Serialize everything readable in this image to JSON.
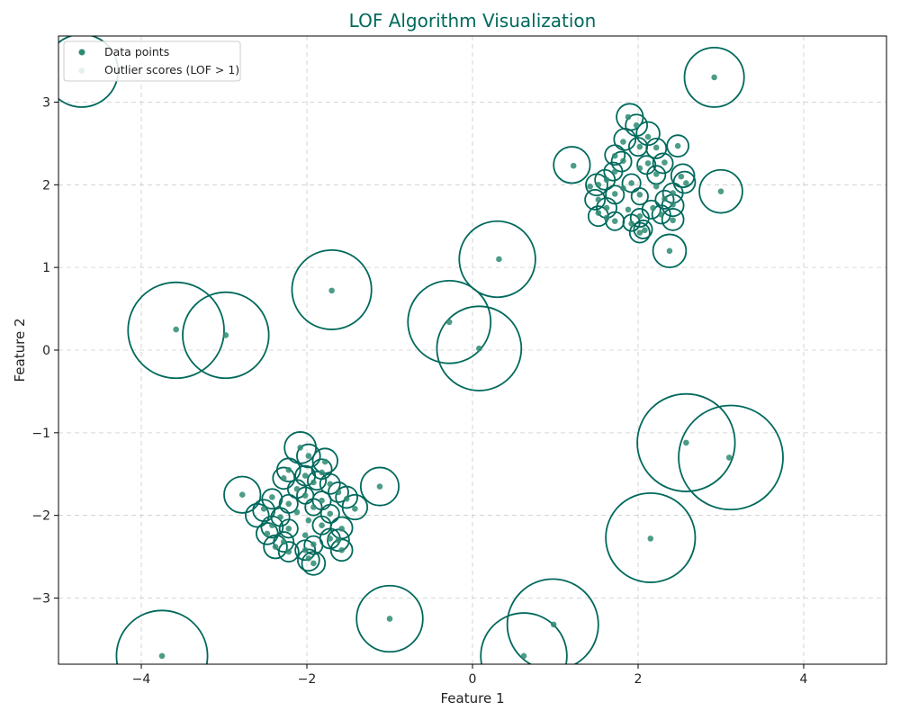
{
  "chart_data": {
    "type": "scatter",
    "title": "LOF Algorithm Visualization",
    "xlabel": "Feature 1",
    "ylabel": "Feature 2",
    "xlim": [
      -5,
      5
    ],
    "ylim": [
      -3.8,
      3.8
    ],
    "xticks": [
      -4,
      -2,
      0,
      2,
      4
    ],
    "xtick_labels": [
      "−4",
      "−2",
      "0",
      "2",
      "4"
    ],
    "yticks": [
      -3,
      -2,
      -1,
      0,
      1,
      2,
      3
    ],
    "ytick_labels": [
      "−3",
      "−2",
      "−1",
      "0",
      "1",
      "2",
      "3"
    ],
    "grid": true,
    "legend_location": "upper-left",
    "legend": [
      "Data points",
      "Outlier scores (LOF > 1)"
    ],
    "colors": {
      "accent": "#00695c",
      "point": "#2e8b73",
      "grid": "#cccccc"
    },
    "series": [
      {
        "name": "Data points",
        "points": [
          [
            1.88,
            2.82
          ],
          [
            1.98,
            2.72
          ],
          [
            2.12,
            2.58
          ],
          [
            1.82,
            2.52
          ],
          [
            2.22,
            2.45
          ],
          [
            2.02,
            2.46
          ],
          [
            2.48,
            2.47
          ],
          [
            1.72,
            2.35
          ],
          [
            2.32,
            2.27
          ],
          [
            1.22,
            2.23
          ],
          [
            1.82,
            2.29
          ],
          [
            2.12,
            2.26
          ],
          [
            1.72,
            2.16
          ],
          [
            2.02,
            2.2
          ],
          [
            2.22,
            2.13
          ],
          [
            2.52,
            2.1
          ],
          [
            1.62,
            2.06
          ],
          [
            1.92,
            2.02
          ],
          [
            2.22,
            1.98
          ],
          [
            2.42,
            1.9
          ],
          [
            1.52,
            2.0
          ],
          [
            1.82,
            1.96
          ],
          [
            2.58,
            2.02
          ],
          [
            1.42,
            1.98
          ],
          [
            1.72,
            1.89
          ],
          [
            2.02,
            1.88
          ],
          [
            2.32,
            1.83
          ],
          [
            1.52,
            1.82
          ],
          [
            2.42,
            1.76
          ],
          [
            1.62,
            1.72
          ],
          [
            1.88,
            1.7
          ],
          [
            2.18,
            1.72
          ],
          [
            1.52,
            1.66
          ],
          [
            1.72,
            1.56
          ],
          [
            2.02,
            1.62
          ],
          [
            2.28,
            1.64
          ],
          [
            1.62,
            1.6
          ],
          [
            1.92,
            1.53
          ],
          [
            2.42,
            1.57
          ],
          [
            2.02,
            1.42
          ],
          [
            2.08,
            1.45
          ],
          [
            2.38,
            1.2
          ],
          [
            3.0,
            1.92
          ],
          [
            2.92,
            3.3
          ],
          [
            -2.08,
            -1.18
          ],
          [
            -1.98,
            -1.28
          ],
          [
            -1.78,
            -1.35
          ],
          [
            -2.22,
            -1.45
          ],
          [
            -1.82,
            -1.48
          ],
          [
            -2.02,
            -1.52
          ],
          [
            -1.92,
            -1.6
          ],
          [
            -2.28,
            -1.55
          ],
          [
            -1.72,
            -1.62
          ],
          [
            -2.12,
            -1.68
          ],
          [
            -1.62,
            -1.72
          ],
          [
            -2.42,
            -1.78
          ],
          [
            -2.02,
            -1.76
          ],
          [
            -1.82,
            -1.82
          ],
          [
            -2.22,
            -1.86
          ],
          [
            -1.52,
            -1.8
          ],
          [
            -1.92,
            -1.9
          ],
          [
            -2.52,
            -1.92
          ],
          [
            -1.42,
            -1.92
          ],
          [
            -2.12,
            -1.96
          ],
          [
            -1.72,
            -1.98
          ],
          [
            -2.32,
            -2.02
          ],
          [
            -1.98,
            -2.06
          ],
          [
            -2.42,
            -2.12
          ],
          [
            -1.82,
            -2.12
          ],
          [
            -2.22,
            -2.16
          ],
          [
            -1.58,
            -2.16
          ],
          [
            -2.02,
            -2.24
          ],
          [
            -2.48,
            -2.22
          ],
          [
            -1.72,
            -2.28
          ],
          [
            -2.28,
            -2.32
          ],
          [
            -1.92,
            -2.35
          ],
          [
            -1.62,
            -2.3
          ],
          [
            -2.38,
            -2.38
          ],
          [
            -2.02,
            -2.42
          ],
          [
            -2.22,
            -2.44
          ],
          [
            -1.58,
            -2.42
          ],
          [
            -1.98,
            -2.52
          ],
          [
            -1.92,
            -2.58
          ],
          [
            -2.78,
            -1.75
          ],
          [
            -1.12,
            -1.65
          ],
          [
            -4.72,
            3.38
          ],
          [
            -3.58,
            0.25
          ],
          [
            -2.98,
            0.18
          ],
          [
            -1.7,
            0.72
          ],
          [
            0.32,
            1.1
          ],
          [
            -0.28,
            0.34
          ],
          [
            0.08,
            0.02
          ],
          [
            2.58,
            -1.12
          ],
          [
            3.1,
            -1.3
          ],
          [
            2.15,
            -2.28
          ],
          [
            -1.0,
            -3.25
          ],
          [
            0.98,
            -3.32
          ],
          [
            0.62,
            -3.7
          ],
          [
            -3.75,
            -3.7
          ]
        ]
      },
      {
        "name": "Outlier scores (LOF > 1)",
        "circles": [
          [
            1.9,
            2.82,
            0.16
          ],
          [
            1.98,
            2.72,
            0.13
          ],
          [
            2.12,
            2.62,
            0.14
          ],
          [
            1.84,
            2.55,
            0.13
          ],
          [
            2.22,
            2.44,
            0.12
          ],
          [
            2.0,
            2.46,
            0.11
          ],
          [
            2.48,
            2.47,
            0.13
          ],
          [
            1.72,
            2.36,
            0.12
          ],
          [
            2.3,
            2.26,
            0.12
          ],
          [
            1.2,
            2.24,
            0.22
          ],
          [
            1.8,
            2.28,
            0.12
          ],
          [
            2.1,
            2.24,
            0.11
          ],
          [
            1.7,
            2.16,
            0.11
          ],
          [
            2.22,
            2.12,
            0.11
          ],
          [
            2.54,
            2.11,
            0.14
          ],
          [
            1.6,
            2.06,
            0.12
          ],
          [
            1.92,
            2.02,
            0.11
          ],
          [
            2.42,
            1.9,
            0.12
          ],
          [
            1.5,
            2.0,
            0.13
          ],
          [
            2.56,
            2.03,
            0.13
          ],
          [
            1.72,
            1.88,
            0.11
          ],
          [
            2.02,
            1.86,
            0.1
          ],
          [
            2.32,
            1.82,
            0.11
          ],
          [
            1.48,
            1.82,
            0.12
          ],
          [
            2.42,
            1.75,
            0.13
          ],
          [
            1.62,
            1.72,
            0.12
          ],
          [
            2.16,
            1.7,
            0.11
          ],
          [
            1.52,
            1.62,
            0.12
          ],
          [
            1.72,
            1.56,
            0.11
          ],
          [
            2.02,
            1.6,
            0.11
          ],
          [
            2.28,
            1.64,
            0.11
          ],
          [
            1.92,
            1.54,
            0.1
          ],
          [
            2.42,
            1.58,
            0.13
          ],
          [
            2.02,
            1.42,
            0.12
          ],
          [
            2.06,
            1.46,
            0.11
          ],
          [
            2.38,
            1.2,
            0.2
          ],
          [
            3.0,
            1.92,
            0.26
          ],
          [
            2.92,
            3.3,
            0.36
          ],
          [
            -2.08,
            -1.18,
            0.19
          ],
          [
            -1.98,
            -1.28,
            0.14
          ],
          [
            -1.78,
            -1.34,
            0.15
          ],
          [
            -2.22,
            -1.45,
            0.14
          ],
          [
            -1.82,
            -1.44,
            0.12
          ],
          [
            -2.02,
            -1.52,
            0.12
          ],
          [
            -2.28,
            -1.55,
            0.13
          ],
          [
            -1.88,
            -1.58,
            0.11
          ],
          [
            -1.72,
            -1.62,
            0.12
          ],
          [
            -2.12,
            -1.68,
            0.11
          ],
          [
            -1.62,
            -1.72,
            0.12
          ],
          [
            -2.42,
            -1.8,
            0.12
          ],
          [
            -2.02,
            -1.76,
            0.1
          ],
          [
            -1.82,
            -1.82,
            0.11
          ],
          [
            -2.22,
            -1.86,
            0.11
          ],
          [
            -1.52,
            -1.78,
            0.13
          ],
          [
            -1.92,
            -1.9,
            0.1
          ],
          [
            -2.52,
            -1.94,
            0.13
          ],
          [
            -1.42,
            -1.9,
            0.15
          ],
          [
            -2.6,
            -2.0,
            0.14
          ],
          [
            -1.72,
            -1.98,
            0.11
          ],
          [
            -2.32,
            -2.02,
            0.11
          ],
          [
            -2.42,
            -2.14,
            0.13
          ],
          [
            -1.82,
            -2.12,
            0.11
          ],
          [
            -2.22,
            -2.16,
            0.11
          ],
          [
            -1.58,
            -2.15,
            0.13
          ],
          [
            -2.48,
            -2.22,
            0.13
          ],
          [
            -1.72,
            -2.28,
            0.12
          ],
          [
            -2.28,
            -2.32,
            0.12
          ],
          [
            -1.92,
            -2.36,
            0.11
          ],
          [
            -1.62,
            -2.3,
            0.13
          ],
          [
            -2.38,
            -2.38,
            0.14
          ],
          [
            -2.02,
            -2.42,
            0.12
          ],
          [
            -2.22,
            -2.44,
            0.12
          ],
          [
            -1.58,
            -2.42,
            0.13
          ],
          [
            -1.98,
            -2.54,
            0.13
          ],
          [
            -1.92,
            -2.58,
            0.14
          ],
          [
            -2.78,
            -1.75,
            0.22
          ],
          [
            -1.12,
            -1.65,
            0.23
          ],
          [
            -4.72,
            3.38,
            0.44
          ],
          [
            -3.58,
            0.24,
            0.58
          ],
          [
            -2.98,
            0.18,
            0.52
          ],
          [
            -1.7,
            0.73,
            0.48
          ],
          [
            0.3,
            1.1,
            0.46
          ],
          [
            -0.28,
            0.34,
            0.5
          ],
          [
            0.08,
            0.02,
            0.51
          ],
          [
            2.58,
            -1.12,
            0.59
          ],
          [
            3.12,
            -1.3,
            0.63
          ],
          [
            2.15,
            -2.27,
            0.54
          ],
          [
            -1.0,
            -3.25,
            0.4
          ],
          [
            0.97,
            -3.32,
            0.55
          ],
          [
            0.62,
            -3.7,
            0.52
          ],
          [
            -3.75,
            -3.7,
            0.55
          ]
        ]
      }
    ]
  }
}
